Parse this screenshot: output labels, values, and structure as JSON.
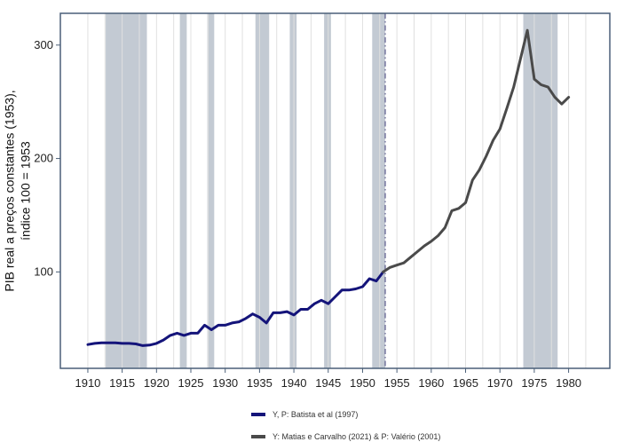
{
  "chart_data": {
    "type": "line",
    "title": "",
    "xlabel": "",
    "ylabel_lines": [
      "PIB real a preços constantes (1953),",
      "índice 100 = 1953"
    ],
    "xlim": [
      1906,
      1986
    ],
    "ylim": [
      15,
      328
    ],
    "xticks": [
      1910,
      1915,
      1920,
      1925,
      1930,
      1935,
      1940,
      1945,
      1950,
      1955,
      1960,
      1965,
      1970,
      1975,
      1980
    ],
    "yticks": [
      100,
      200,
      300
    ],
    "grid": "vertical",
    "legend_position": "bottom",
    "reference_line_x": 1953.3,
    "shaded_periods": [
      [
        1912.6,
        1918.6
      ],
      [
        1923.4,
        1924.4
      ],
      [
        1927.4,
        1928.4
      ],
      [
        1934.4,
        1936.4
      ],
      [
        1939.4,
        1940.4
      ],
      [
        1944.4,
        1945.4
      ],
      [
        1951.4,
        1953.3
      ],
      [
        1973.4,
        1978.4
      ]
    ],
    "colors": {
      "series1": "#14147a",
      "series2": "#4a4a4a",
      "shade": "#c3cad3",
      "grid": "#e0e0e0",
      "axis": "#4a5f78",
      "reference_line": "#5a5a8a"
    },
    "series": [
      {
        "name": "Y, P: Batista et al (1997)",
        "color": "#14147a",
        "x": [
          1910,
          1911,
          1912,
          1913,
          1914,
          1915,
          1916,
          1917,
          1918,
          1919,
          1920,
          1921,
          1922,
          1923,
          1924,
          1925,
          1926,
          1927,
          1928,
          1929,
          1930,
          1931,
          1932,
          1933,
          1934,
          1935,
          1936,
          1937,
          1938,
          1939,
          1940,
          1941,
          1942,
          1943,
          1944,
          1945,
          1946,
          1947,
          1948,
          1949,
          1950,
          1951,
          1952,
          1953
        ],
        "y": [
          36,
          37,
          37.5,
          37.5,
          37.5,
          37,
          37,
          36.5,
          35,
          35.5,
          37,
          40,
          44,
          46,
          44,
          46,
          46,
          53,
          49,
          53,
          53,
          55,
          56,
          59,
          63,
          60,
          55,
          64,
          64,
          65,
          62,
          67,
          67,
          72,
          75,
          72,
          78,
          84,
          84,
          85,
          87,
          94,
          92,
          100
        ]
      },
      {
        "name": "Y: Matias e Carvalho (2021) & P: Valério (2001)",
        "color": "#4a4a4a",
        "x": [
          1953,
          1954,
          1955,
          1956,
          1957,
          1958,
          1959,
          1960,
          1961,
          1962,
          1963,
          1964,
          1965,
          1966,
          1967,
          1968,
          1969,
          1970,
          1971,
          1972,
          1973,
          1974,
          1975,
          1976,
          1977,
          1978,
          1979,
          1980
        ],
        "y": [
          100,
          104,
          106,
          108,
          113,
          118,
          123,
          127,
          132,
          139,
          154,
          156,
          161,
          181,
          190,
          202,
          216,
          226,
          244,
          263,
          288,
          313,
          270,
          265,
          263,
          254,
          248,
          254
        ]
      }
    ]
  }
}
